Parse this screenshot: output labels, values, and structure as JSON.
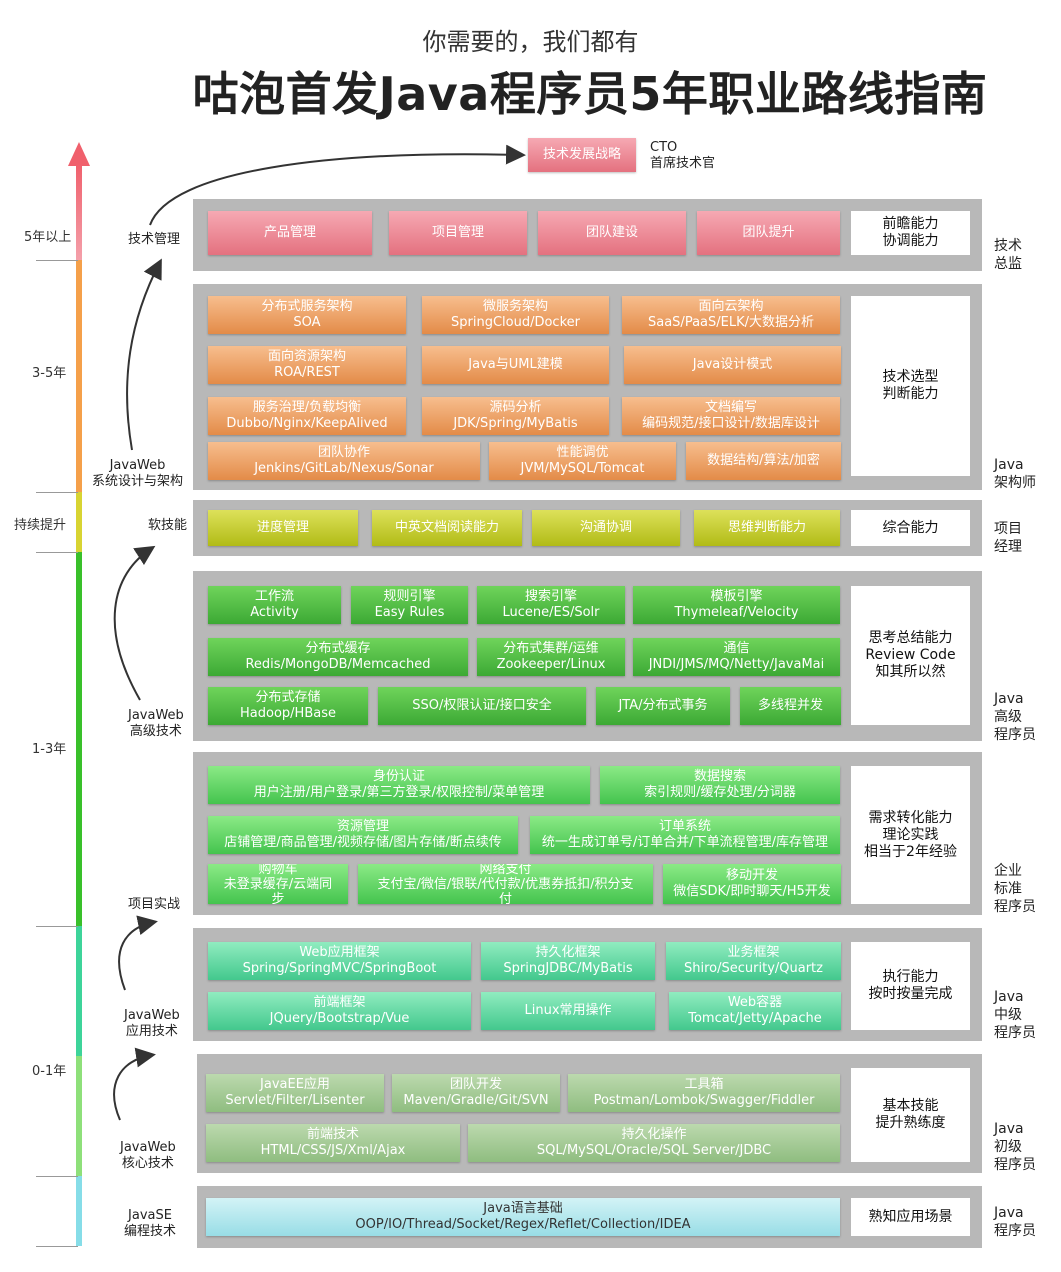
{
  "header": {
    "subtitle": "你需要的，我们都有",
    "title": "咕泡首发Java程序员5年职业路线指南"
  },
  "top": {
    "strategy": "技术发展战略",
    "cto": "CTO",
    "cto_desc": "首席技术官"
  },
  "years": {
    "y5": "5年以上",
    "y35": "3-5年",
    "cont": "持续提升",
    "y13": "1-3年",
    "y01": "0-1年"
  },
  "stages": {
    "mgmt": "技术管理",
    "arch": [
      "JavaWeb",
      "系统设计与架构"
    ],
    "soft": "软技能",
    "adv": [
      "JavaWeb",
      "高级技术"
    ],
    "proj": "项目实战",
    "app": [
      "JavaWeb",
      "应用技术"
    ],
    "core": [
      "JavaWeb",
      "核心技术"
    ],
    "se": [
      "JavaSE",
      "编程技术"
    ]
  },
  "roles": {
    "director": [
      "技术",
      "总监"
    ],
    "architect": [
      "Java",
      "架构师"
    ],
    "pm": [
      "项目",
      "经理"
    ],
    "senior": [
      "Java",
      "高级",
      "程序员"
    ],
    "enterprise": [
      "企业",
      "标准",
      "程序员"
    ],
    "middle": [
      "Java",
      "中级",
      "程序员"
    ],
    "junior": [
      "Java",
      "初级",
      "程序员"
    ],
    "entry": [
      "Java",
      "程序员"
    ]
  },
  "abilities": {
    "director": [
      "前瞻能力",
      "协调能力"
    ],
    "architect": [
      "技术选型",
      "判断能力"
    ],
    "pm": [
      "综合能力"
    ],
    "senior": [
      "思考总结能力",
      "Review Code",
      "知其所以然"
    ],
    "enterprise": [
      "需求转化能力",
      "理论实践",
      "相当于2年经验"
    ],
    "middle": [
      "执行能力",
      "按时按量完成"
    ],
    "junior": [
      "基本技能",
      "提升熟练度"
    ],
    "entry": [
      "熟知应用场景"
    ]
  },
  "mgmt": [
    "产品管理",
    "项目管理",
    "团队建设",
    "团队提升"
  ],
  "arch": {
    "a1": [
      "分布式服务架构",
      "SOA"
    ],
    "a2": [
      "微服务架构",
      "SpringCloud/Docker"
    ],
    "a3": [
      "面向云架构",
      "SaaS/PaaS/ELK/大数据分析"
    ],
    "a4": [
      "面向资源架构",
      "ROA/REST"
    ],
    "a5": "Java与UML建模",
    "a6": "Java设计模式",
    "a7": [
      "服务治理/负载均衡",
      "Dubbo/Nginx/KeepAlived"
    ],
    "a8": [
      "源码分析",
      "JDK/Spring/MyBatis"
    ],
    "a9": [
      "文档编写",
      "编码规范/接口设计/数据库设计"
    ],
    "a10": [
      "团队协作",
      "Jenkins/GitLab/Nexus/Sonar"
    ],
    "a11": [
      "性能调优",
      "JVM/MySQL/Tomcat"
    ],
    "a12": "数据结构/算法/加密"
  },
  "soft": [
    "进度管理",
    "中英文档阅读能力",
    "沟通协调",
    "思维判断能力"
  ],
  "adv": {
    "b1": [
      "工作流",
      "Activity"
    ],
    "b2": [
      "规则引擎",
      "Easy Rules"
    ],
    "b3": [
      "搜索引擎",
      "Lucene/ES/Solr"
    ],
    "b4": [
      "模板引擎",
      "Thymeleaf/Velocity"
    ],
    "b5": [
      "分布式缓存",
      "Redis/MongoDB/Memcached"
    ],
    "b6": [
      "分布式集群/运维",
      "Zookeeper/Linux"
    ],
    "b7": [
      "通信",
      "JNDI/JMS/MQ/Netty/JavaMai"
    ],
    "b8": [
      "分布式存储",
      "Hadoop/HBase"
    ],
    "b9": "SSO/权限认证/接口安全",
    "b10": "JTA/分布式事务",
    "b11": "多线程并发"
  },
  "proj": {
    "c1": [
      "身份认证",
      "用户注册/用户登录/第三方登录/权限控制/菜单管理"
    ],
    "c2": [
      "数据搜索",
      "索引规则/缓存处理/分词器"
    ],
    "c3": [
      "资源管理",
      "店铺管理/商品管理/视频存储/图片存储/断点续传"
    ],
    "c4": [
      "订单系统",
      "统一生成订单号/订单合并/下单流程管理/库存管理"
    ],
    "c5": [
      "购物车",
      "未登录缓存/云端同",
      "步"
    ],
    "c6": [
      "网络支付",
      "支付宝/微信/银联/代付款/优惠券抵扣/积分支",
      "付"
    ],
    "c7": [
      "移动开发",
      "微信SDK/即时聊天/H5开发"
    ]
  },
  "app": {
    "d1": [
      "Web应用框架",
      "Spring/SpringMVC/SpringBoot"
    ],
    "d2": [
      "持久化框架",
      "SpringJDBC/MyBatis"
    ],
    "d3": [
      "业务框架",
      "Shiro/Security/Quartz"
    ],
    "d4": [
      "前端框架",
      "JQuery/Bootstrap/Vue"
    ],
    "d5": "Linux常用操作",
    "d6": [
      "Web容器",
      "Tomcat/Jetty/Apache"
    ]
  },
  "core": {
    "e1": [
      "JavaEE应用",
      "Servlet/Filter/Lisenter"
    ],
    "e2": [
      "团队开发",
      "Maven/Gradle/Git/SVN"
    ],
    "e3": [
      "工具箱",
      "Postman/Lombok/Swagger/Fiddler"
    ],
    "e4": [
      "前端技术",
      "HTML/CSS/JS/Xml/Ajax"
    ],
    "e5": [
      "持久化操作",
      "SQL/MySQL/Oracle/SQL Server/JDBC"
    ]
  },
  "se": {
    "f1": [
      "Java语言基础",
      "OOP/IO/Thread/Socket/Regex/Reflet/Collection/IDEA"
    ]
  },
  "colors": {
    "pink": "#e4717f",
    "orange": "#e38b48",
    "olive": "#b1bb16",
    "green": "#3ca934",
    "mint": "#43c88d",
    "band": "#b8b8b8"
  }
}
